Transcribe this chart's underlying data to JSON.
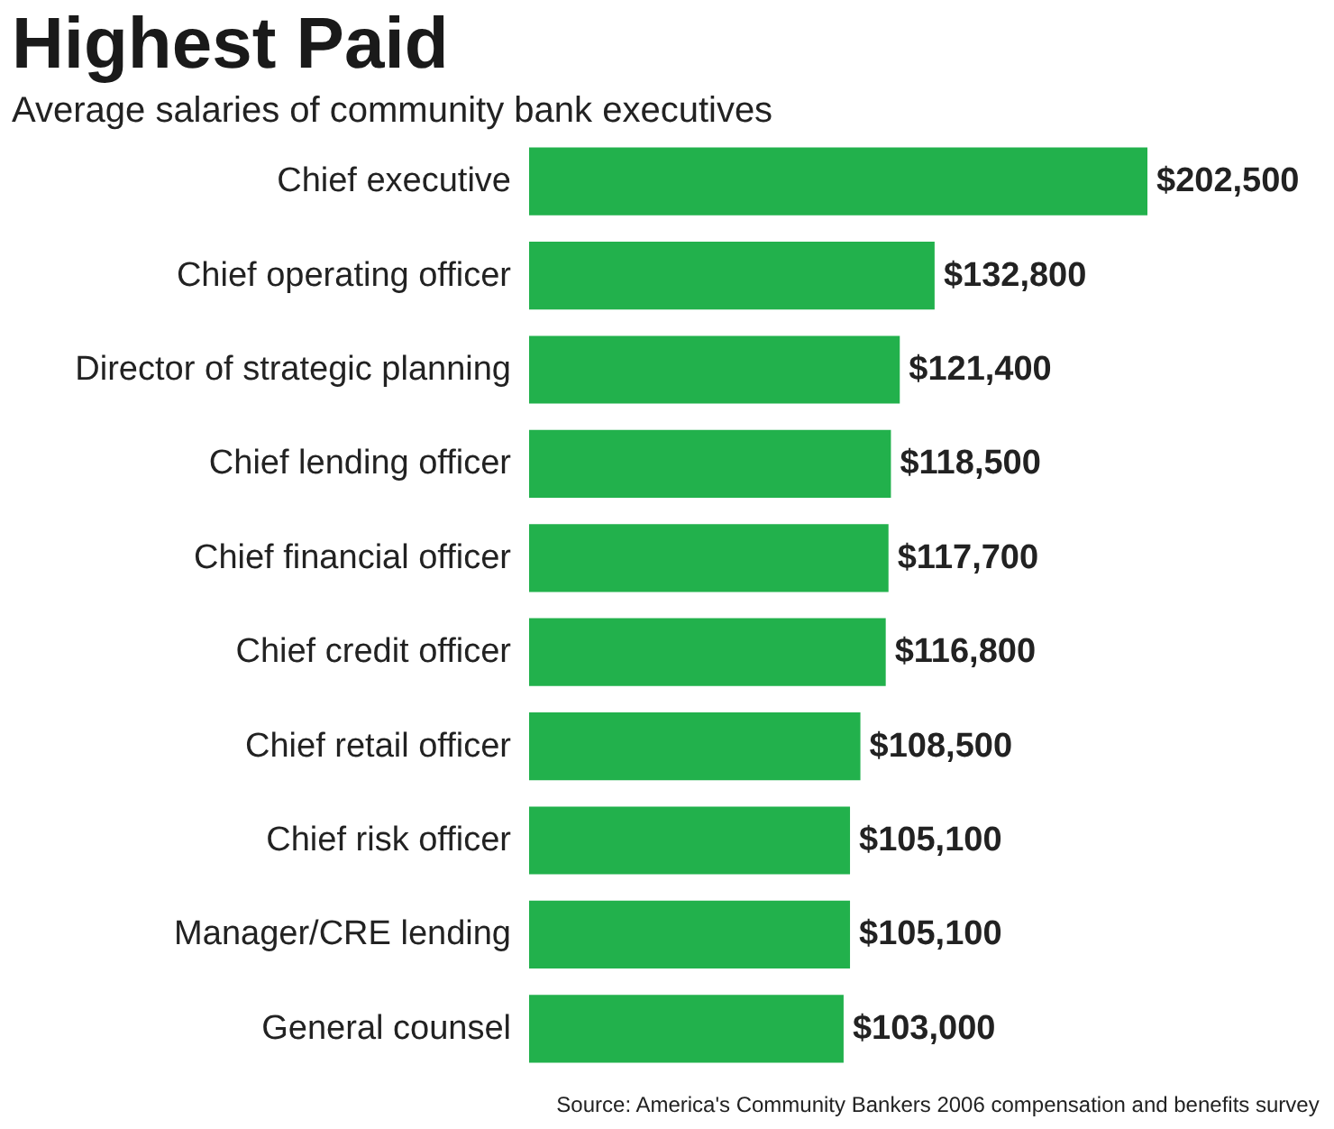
{
  "chart_data": {
    "type": "bar",
    "orientation": "horizontal",
    "title": "Highest Paid",
    "subtitle": "Average salaries of community bank executives",
    "categories": [
      "Chief executive",
      "Chief operating officer",
      "Director of strategic planning",
      "Chief lending officer",
      "Chief financial officer",
      "Chief credit officer",
      "Chief retail officer",
      "Chief risk officer",
      "Manager/CRE lending",
      "General counsel"
    ],
    "values": [
      202500,
      132800,
      121400,
      118500,
      117700,
      116800,
      108500,
      105100,
      105100,
      103000
    ],
    "value_labels": [
      "$202,500",
      "$132,800",
      "$121,400",
      "$118,500",
      "$117,700",
      "$116,800",
      "$108,500",
      "$105,100",
      "$105,100",
      "$103,000"
    ],
    "color": "#22b14c",
    "tick_labels": "y",
    "annotations": [
      "Source: America's Community Bankers 2006 compensation and benefits survey"
    ]
  }
}
